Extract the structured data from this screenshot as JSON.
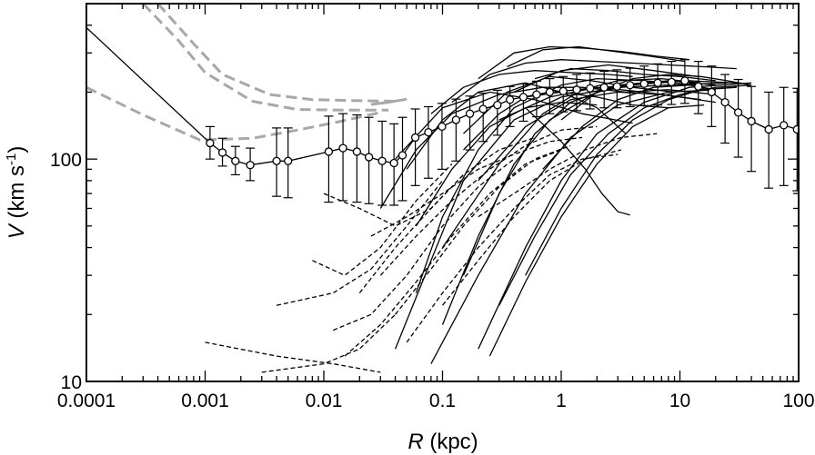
{
  "chart_data": {
    "type": "line",
    "title": "",
    "xlabel": {
      "var": "R",
      "unit": " (kpc)"
    },
    "ylabel": {
      "var": "V",
      "unit_pre": " (km s",
      "unit_sup": "-1",
      "unit_post": ")"
    },
    "xscale": "log",
    "yscale": "log",
    "xlim": [
      0.0001,
      100
    ],
    "ylim": [
      10,
      500
    ],
    "x_ticks": [
      {
        "value": 0.0001,
        "label": "0.0001"
      },
      {
        "value": 0.001,
        "label": "0.001"
      },
      {
        "value": 0.01,
        "label": "0.01"
      },
      {
        "value": 0.1,
        "label": "0.1"
      },
      {
        "value": 1,
        "label": "1"
      },
      {
        "value": 10,
        "label": "10"
      },
      {
        "value": 100,
        "label": "100"
      }
    ],
    "y_ticks": [
      {
        "value": 10,
        "label": "10"
      },
      {
        "value": 100,
        "label": "100"
      }
    ],
    "grid": false,
    "legend": "none",
    "colors": {
      "axis": "#000000",
      "curve": "#000000",
      "model": "#a8a8a8",
      "marker_fill": "#ffffff"
    },
    "milky_way_points": {
      "x": [
        0.0011,
        0.0014,
        0.0018,
        0.0024,
        0.004,
        0.005,
        0.011,
        0.0145,
        0.019,
        0.024,
        0.031,
        0.039,
        0.046,
        0.059,
        0.076,
        0.099,
        0.13,
        0.17,
        0.22,
        0.29,
        0.37,
        0.48,
        0.62,
        0.8,
        1.04,
        1.35,
        1.75,
        2.3,
        2.95,
        3.8,
        5,
        6.5,
        8.5,
        11,
        14.3,
        18.5,
        24,
        31,
        40,
        56,
        75,
        97
      ],
      "y": [
        118,
        107,
        98,
        94,
        98,
        98,
        108,
        112,
        108,
        102,
        98,
        96,
        104,
        125,
        132,
        140,
        150,
        160,
        168,
        175,
        185,
        190,
        195,
        200,
        202,
        205,
        208,
        210,
        212,
        215,
        218,
        220,
        222,
        225,
        212,
        200,
        180,
        162,
        148,
        136,
        142,
        136
      ],
      "err_lo": [
        100,
        93,
        85,
        80,
        68,
        67,
        64,
        65,
        64,
        63,
        62,
        62,
        65,
        76,
        82,
        90,
        98,
        110,
        120,
        128,
        140,
        148,
        155,
        160,
        163,
        165,
        168,
        170,
        170,
        172,
        174,
        175,
        176,
        178,
        160,
        140,
        118,
        102,
        88,
        74,
        76,
        72
      ],
      "err_hi": [
        140,
        124,
        114,
        112,
        138,
        138,
        156,
        160,
        158,
        154,
        148,
        144,
        154,
        168,
        172,
        178,
        186,
        192,
        198,
        204,
        212,
        218,
        224,
        230,
        235,
        240,
        244,
        248,
        252,
        256,
        262,
        268,
        275,
        280,
        275,
        262,
        240,
        228,
        212,
        200,
        210,
        208
      ]
    },
    "central_line": {
      "x": [
        0.0001,
        0.0011
      ],
      "y": [
        390,
        118
      ]
    },
    "model_curves_dashed": [
      {
        "x": [
          0.0003,
          0.0006,
          0.001,
          0.0025,
          0.006,
          0.015,
          0.035
        ],
        "y": [
          500,
          340,
          245,
          182,
          167,
          166,
          166
        ]
      },
      {
        "x": [
          0.0004,
          0.0008,
          0.0014,
          0.0035,
          0.008,
          0.02,
          0.04
        ],
        "y": [
          500,
          330,
          240,
          195,
          185,
          183,
          182
        ]
      },
      {
        "x": [
          0.0001,
          0.0003,
          0.0009,
          0.0025,
          0.006,
          0.014,
          0.03
        ],
        "y": [
          210,
          158,
          122,
          124,
          135,
          148,
          162
        ]
      }
    ],
    "model_curve_solid": {
      "x": [
        0.025,
        0.035,
        0.05
      ],
      "y": [
        176,
        180,
        186
      ]
    },
    "galaxy_curves_solid": [
      {
        "x": [
          0.03,
          0.06,
          0.12,
          0.3,
          0.7,
          1.5,
          3.5,
          8,
          20
        ],
        "y": [
          60,
          110,
          160,
          195,
          210,
          210,
          200,
          205,
          195
        ]
      },
      {
        "x": [
          0.04,
          0.08,
          0.15,
          0.4,
          1,
          3,
          8,
          25
        ],
        "y": [
          14,
          35,
          80,
          150,
          190,
          210,
          215,
          220
        ]
      },
      {
        "x": [
          0.06,
          0.1,
          0.2,
          0.4,
          1,
          2,
          5,
          15
        ],
        "y": [
          25,
          55,
          110,
          170,
          215,
          230,
          225,
          215
        ]
      },
      {
        "x": [
          0.1,
          0.2,
          0.4,
          0.8,
          2,
          5,
          12,
          30
        ],
        "y": [
          18,
          45,
          95,
          150,
          200,
          220,
          225,
          220
        ]
      },
      {
        "x": [
          0.15,
          0.3,
          0.6,
          1.2,
          3,
          8,
          20
        ],
        "y": [
          30,
          70,
          130,
          180,
          215,
          225,
          215
        ]
      },
      {
        "x": [
          0.2,
          0.5,
          1,
          2,
          5,
          12,
          40
        ],
        "y": [
          14,
          40,
          80,
          130,
          180,
          210,
          220
        ]
      },
      {
        "x": [
          0.3,
          0.6,
          1.2,
          2.5,
          5,
          10,
          20,
          40
        ],
        "y": [
          22,
          45,
          85,
          130,
          170,
          195,
          210,
          215
        ]
      },
      {
        "x": [
          0.5,
          1,
          2,
          4,
          8,
          15,
          30
        ],
        "y": [
          30,
          60,
          105,
          150,
          185,
          205,
          210
        ]
      },
      {
        "x": [
          0.25,
          0.5,
          1,
          2,
          4,
          8
        ],
        "y": [
          13,
          28,
          55,
          95,
          140,
          170
        ]
      },
      {
        "x": [
          0.1,
          0.3,
          0.7,
          1.5,
          3,
          7,
          15
        ],
        "y": [
          40,
          95,
          160,
          205,
          225,
          230,
          220
        ]
      },
      {
        "x": [
          0.08,
          0.15,
          0.3,
          0.6,
          1.2,
          2.5,
          4
        ],
        "y": [
          160,
          210,
          240,
          250,
          245,
          240,
          235
        ]
      },
      {
        "x": [
          0.12,
          0.25,
          0.5,
          1,
          2,
          4,
          8,
          16,
          30
        ],
        "y": [
          180,
          240,
          270,
          280,
          275,
          270,
          265,
          260,
          255
        ]
      },
      {
        "x": [
          0.2,
          0.4,
          0.8,
          1.6,
          3.2,
          6.4,
          12
        ],
        "y": [
          230,
          300,
          320,
          315,
          305,
          290,
          280
        ]
      },
      {
        "x": [
          0.35,
          0.7,
          1.4,
          2.8,
          5.6,
          11
        ],
        "y": [
          260,
          310,
          320,
          305,
          290,
          275
        ]
      },
      {
        "x": [
          0.05,
          0.1,
          0.2,
          0.5,
          1,
          2,
          3.5
        ],
        "y": [
          90,
          150,
          200,
          220,
          200,
          170,
          130
        ]
      },
      {
        "x": [
          0.5,
          1,
          1.6,
          2.2,
          3,
          3.8
        ],
        "y": [
          170,
          120,
          90,
          70,
          58,
          56
        ]
      },
      {
        "x": [
          0.04,
          0.1,
          0.25,
          0.6,
          1.5,
          4
        ],
        "y": [
          100,
          170,
          200,
          185,
          160,
          145
        ]
      },
      {
        "x": [
          0.15,
          0.3,
          0.5,
          1,
          2,
          4,
          8,
          16
        ],
        "y": [
          110,
          160,
          190,
          200,
          190,
          175,
          170,
          175
        ]
      },
      {
        "x": [
          0.3,
          0.8,
          2,
          5,
          10,
          20
        ],
        "y": [
          150,
          190,
          210,
          200,
          190,
          180
        ]
      },
      {
        "x": [
          1,
          2,
          4,
          8,
          15,
          25,
          40
        ],
        "y": [
          150,
          200,
          230,
          240,
          235,
          225,
          215
        ]
      },
      {
        "x": [
          0.7,
          1.5,
          3,
          6,
          12,
          20
        ],
        "y": [
          90,
          140,
          185,
          210,
          215,
          205
        ]
      },
      {
        "x": [
          0.06,
          0.12,
          0.25,
          0.5,
          1,
          2
        ],
        "y": [
          50,
          90,
          140,
          170,
          180,
          175
        ]
      },
      {
        "x": [
          0.2,
          0.5,
          1.2,
          3,
          7,
          15
        ],
        "y": [
          80,
          140,
          185,
          200,
          195,
          185
        ]
      },
      {
        "x": [
          0.08,
          0.2,
          0.5,
          1.2,
          3,
          8,
          20
        ],
        "y": [
          12,
          30,
          70,
          125,
          175,
          200,
          205
        ]
      },
      {
        "x": [
          0.4,
          1,
          2.5,
          6,
          14
        ],
        "y": [
          200,
          250,
          265,
          250,
          235
        ]
      },
      {
        "x": [
          0.15,
          0.35,
          0.8,
          1.8,
          4,
          9
        ],
        "y": [
          130,
          200,
          235,
          225,
          210,
          200
        ]
      },
      {
        "x": [
          0.6,
          1.2,
          2.5,
          5,
          10,
          20
        ],
        "y": [
          230,
          255,
          250,
          240,
          235,
          225
        ]
      }
    ],
    "galaxy_curves_dashed": [
      {
        "x": [
          0.001,
          0.004,
          0.012,
          0.03
        ],
        "y": [
          15,
          13,
          12,
          11
        ]
      },
      {
        "x": [
          0.003,
          0.01,
          0.02,
          0.04
        ],
        "y": [
          11,
          12,
          14,
          20
        ]
      },
      {
        "x": [
          0.004,
          0.012,
          0.025,
          0.05,
          0.1
        ],
        "y": [
          22,
          25,
          32,
          50,
          80
        ]
      },
      {
        "x": [
          0.008,
          0.015,
          0.03,
          0.06,
          0.12
        ],
        "y": [
          35,
          30,
          40,
          65,
          95
        ]
      },
      {
        "x": [
          0.01,
          0.02,
          0.04,
          0.08,
          0.15
        ],
        "y": [
          70,
          60,
          50,
          60,
          85
        ]
      },
      {
        "x": [
          0.012,
          0.025,
          0.05,
          0.1,
          0.2,
          0.4
        ],
        "y": [
          17,
          20,
          30,
          50,
          75,
          100
        ]
      },
      {
        "x": [
          0.015,
          0.03,
          0.06,
          0.12,
          0.25,
          0.5,
          1
        ],
        "y": [
          13,
          18,
          28,
          45,
          70,
          95,
          110
        ]
      },
      {
        "x": [
          0.02,
          0.04,
          0.08,
          0.15,
          0.3,
          0.6
        ],
        "y": [
          25,
          40,
          60,
          85,
          110,
          125
        ]
      },
      {
        "x": [
          0.025,
          0.05,
          0.1,
          0.2,
          0.4,
          0.8,
          1.5
        ],
        "y": [
          45,
          55,
          70,
          90,
          105,
          120,
          125
        ]
      },
      {
        "x": [
          0.03,
          0.06,
          0.12,
          0.25,
          0.5,
          1,
          2
        ],
        "y": [
          30,
          45,
          65,
          90,
          115,
          135,
          140
        ]
      },
      {
        "x": [
          0.04,
          0.08,
          0.15,
          0.3,
          0.6,
          1.2
        ],
        "y": [
          20,
          32,
          50,
          75,
          100,
          115
        ]
      },
      {
        "x": [
          0.05,
          0.1,
          0.2,
          0.4,
          0.8,
          1.5,
          3
        ],
        "y": [
          15,
          25,
          40,
          60,
          85,
          100,
          105
        ]
      },
      {
        "x": [
          0.1,
          0.2,
          0.4,
          0.8,
          1.6,
          3.2
        ],
        "y": [
          22,
          35,
          55,
          80,
          100,
          110
        ]
      },
      {
        "x": [
          0.2,
          0.4,
          0.8,
          1.6,
          3.2,
          6.4
        ],
        "y": [
          55,
          70,
          90,
          110,
          125,
          130
        ]
      }
    ]
  }
}
